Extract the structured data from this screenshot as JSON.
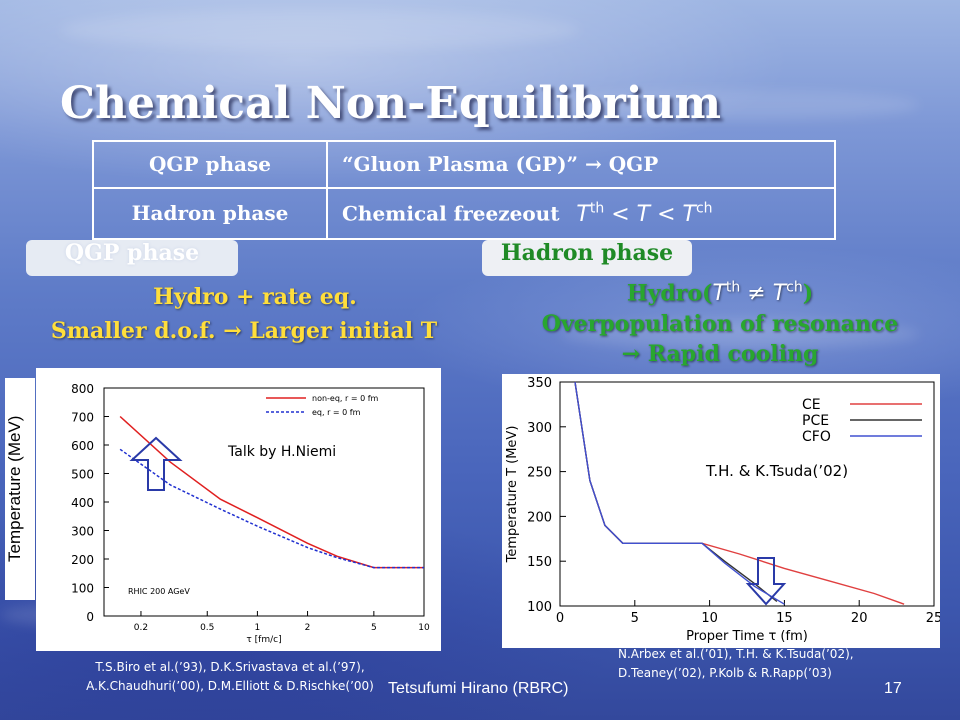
{
  "title": "Chemical Non-Equilibrium",
  "table": [
    {
      "label": "QGP phase",
      "value": "“Gluon Plasma (GP)”  →  QGP"
    },
    {
      "label": "Hadron phase",
      "value": "Chemical freezeout",
      "math": "T th < T < T ch"
    }
  ],
  "left": {
    "box": "QGP phase",
    "line1": "Hydro + rate eq.",
    "line2": "Smaller d.o.f.  →  Larger initial T",
    "plot_annotation": "Talk by H.Niemi",
    "ylabel": "Temperature (MeV)",
    "refs": [
      "T.S.Biro et al.(’93), D.K.Srivastava et al.(’97),",
      "A.K.Chaudhuri(’00), D.M.Elliott & D.Rischke(’00)"
    ]
  },
  "right": {
    "box": "Hadron phase",
    "line1": "Hydro(T th ≠ T ch)",
    "line2": "Overpopulation of resonance",
    "line3": "→  Rapid cooling",
    "plot_annotation": "T.H. & K.Tsuda(’02)",
    "refs": [
      "N.Arbex et al.(’01), T.H. & K.Tsuda(’02),",
      "D.Teaney(’02), P.Kolb & R.Rapp(’03)"
    ]
  },
  "footer": "Tetsufumi Hirano (RBRC)",
  "page_number": "17",
  "chart_data": [
    {
      "type": "line",
      "x_scale": "log",
      "xlabel": "τ [fm/c]",
      "x_ticks": [
        "0.2",
        "0.5",
        "1",
        "2",
        "5",
        "10"
      ],
      "y_ticks": [
        "800",
        "700",
        "600",
        "500",
        "400",
        "300",
        "200",
        "100",
        "0"
      ],
      "annotation": "RHIC 200 AGeV",
      "series": [
        {
          "name": "non-eq, r = 0 fm",
          "color": "#e02020",
          "points": [
            [
              0.15,
              700
            ],
            [
              0.3,
              540
            ],
            [
              0.6,
              410
            ],
            [
              1,
              345
            ],
            [
              2,
              255
            ],
            [
              3,
              210
            ],
            [
              5,
              170
            ],
            [
              10,
              170
            ]
          ]
        },
        {
          "name": "eq, r = 0 fm",
          "color": "#2030d0",
          "points": [
            [
              0.15,
              585
            ],
            [
              0.3,
              460
            ],
            [
              0.6,
              375
            ],
            [
              1,
              315
            ],
            [
              2,
              240
            ],
            [
              3,
              205
            ],
            [
              5,
              170
            ],
            [
              10,
              170
            ]
          ]
        }
      ],
      "ylim": [
        0,
        800
      ],
      "xlim": [
        0.12,
        10
      ]
    },
    {
      "type": "line",
      "xlabel": "Proper Time τ (fm)",
      "ylabel": "Temperature T (MeV)",
      "x_ticks": [
        "0",
        "5",
        "10",
        "15",
        "20",
        "25"
      ],
      "y_ticks": [
        "100",
        "150",
        "200",
        "250",
        "300",
        "350"
      ],
      "xlim": [
        0,
        25
      ],
      "ylim": [
        100,
        350
      ],
      "series": [
        {
          "name": "CE",
          "color": "#e04040",
          "points": [
            [
              1,
              350
            ],
            [
              2,
              240
            ],
            [
              3,
              190
            ],
            [
              4.2,
              170
            ],
            [
              9.5,
              170
            ],
            [
              12,
              158
            ],
            [
              15,
              142
            ],
            [
              18,
              128
            ],
            [
              21,
              114
            ],
            [
              23,
              102
            ]
          ]
        },
        {
          "name": "PCE",
          "color": "#333333",
          "points": [
            [
              1,
              350
            ],
            [
              2,
              240
            ],
            [
              3,
              190
            ],
            [
              4.2,
              170
            ],
            [
              9.5,
              170
            ],
            [
              11,
              150
            ],
            [
              13,
              125
            ],
            [
              14.5,
              105
            ]
          ]
        },
        {
          "name": "CFO",
          "color": "#4050d0",
          "points": [
            [
              1,
              350
            ],
            [
              2,
              240
            ],
            [
              3,
              190
            ],
            [
              4.2,
              170
            ],
            [
              9.5,
              170
            ],
            [
              11,
              148
            ],
            [
              13,
              122
            ],
            [
              15,
              102
            ]
          ]
        }
      ]
    }
  ]
}
